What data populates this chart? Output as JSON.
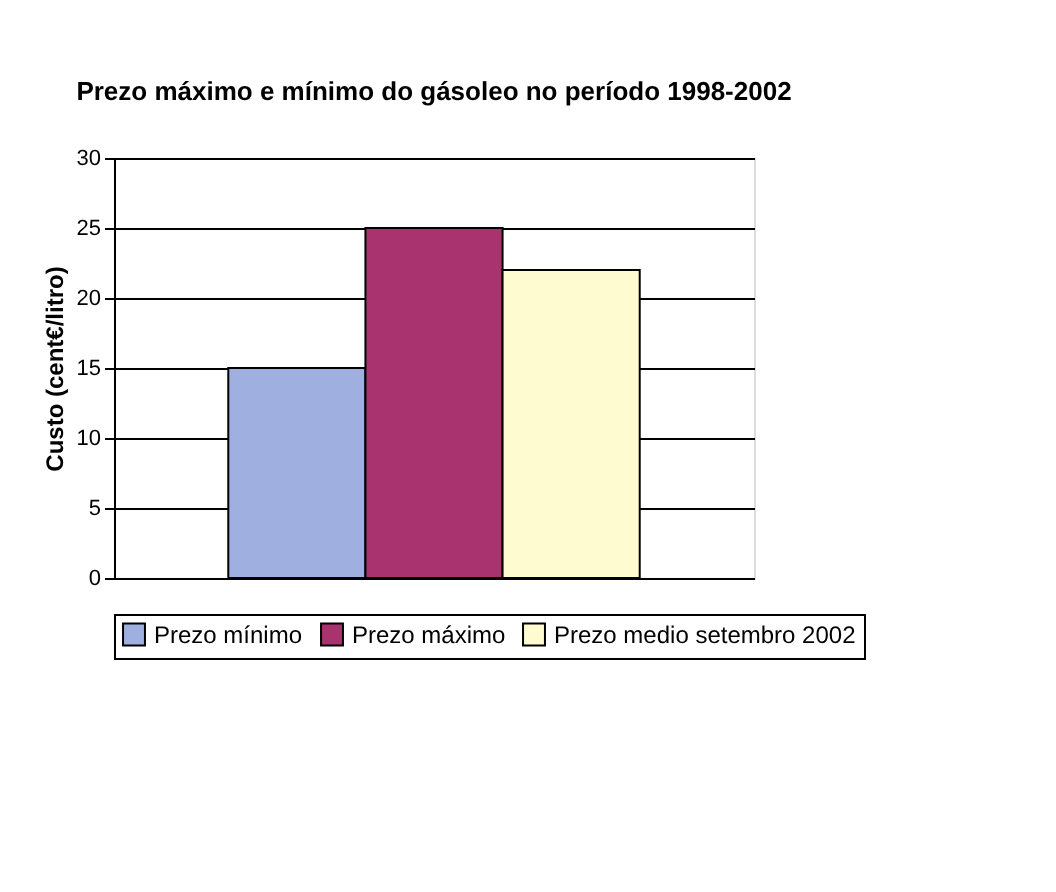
{
  "chart_data": {
    "type": "bar",
    "title": "Prezo máximo e mínimo do gásoleo no período 1998-2002",
    "ylabel": "Custo (cent€/litro)",
    "categories": [
      null
    ],
    "series": [
      {
        "name": "Prezo mínimo",
        "color": "#9fb0e0",
        "values": [
          15
        ]
      },
      {
        "name": "Prezo máximo",
        "color": "#a8336e",
        "values": [
          25
        ]
      },
      {
        "name": "Prezo medio setembro 2002",
        "color": "#fffbd0",
        "values": [
          22
        ]
      }
    ],
    "ylim": [
      0,
      30
    ],
    "yticks": [
      0,
      5,
      10,
      15,
      20,
      25,
      30
    ],
    "grid": "y",
    "legend": "bottom",
    "tick_labels": "y"
  }
}
